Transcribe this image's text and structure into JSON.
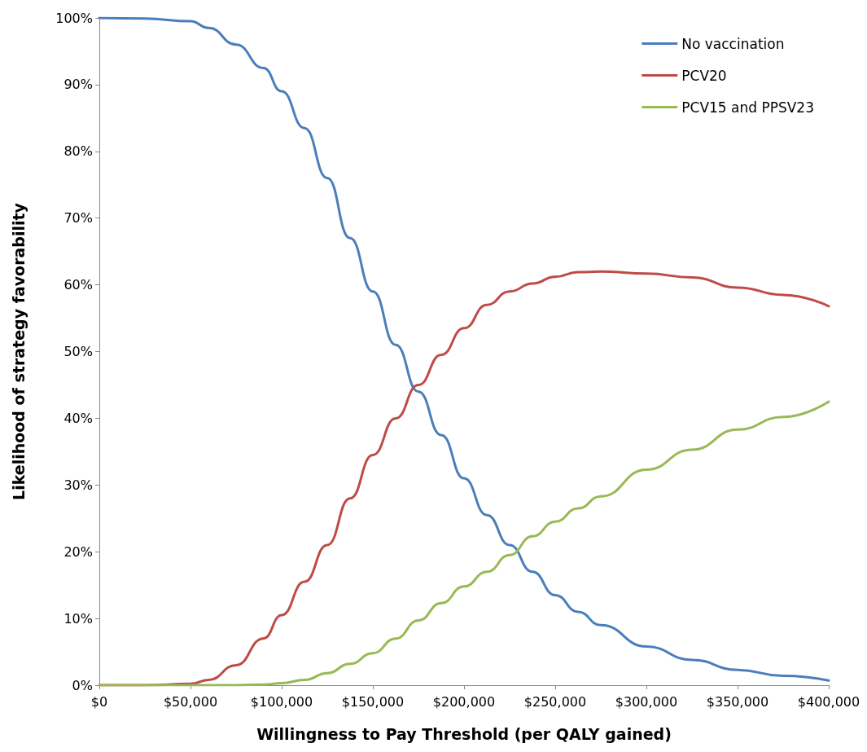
{
  "chart_data": {
    "type": "line",
    "xlabel": "Willingness to Pay Threshold (per QALY gained)",
    "ylabel": "Likelihood of strategy favorability",
    "xlim": [
      0,
      400000
    ],
    "ylim": [
      0,
      100
    ],
    "xticks": [
      {
        "value": 0,
        "label": "$0"
      },
      {
        "value": 50000,
        "label": "$50,000"
      },
      {
        "value": 100000,
        "label": "$100,000"
      },
      {
        "value": 150000,
        "label": "$150,000"
      },
      {
        "value": 200000,
        "label": "$200,000"
      },
      {
        "value": 250000,
        "label": "$250,000"
      },
      {
        "value": 300000,
        "label": "$300,000"
      },
      {
        "value": 350000,
        "label": "$350,000"
      },
      {
        "value": 400000,
        "label": "$400,000"
      }
    ],
    "yticks": [
      {
        "value": 0,
        "label": "0%"
      },
      {
        "value": 10,
        "label": "10%"
      },
      {
        "value": 20,
        "label": "20%"
      },
      {
        "value": 30,
        "label": "30%"
      },
      {
        "value": 40,
        "label": "40%"
      },
      {
        "value": 50,
        "label": "50%"
      },
      {
        "value": 60,
        "label": "60%"
      },
      {
        "value": 70,
        "label": "70%"
      },
      {
        "value": 80,
        "label": "80%"
      },
      {
        "value": 90,
        "label": "90%"
      },
      {
        "value": 100,
        "label": "100%"
      }
    ],
    "grid": false,
    "legend": "top right",
    "marker": "none",
    "line_style": "solid",
    "x": [
      0,
      25000,
      50000,
      60000,
      75000,
      90000,
      100000,
      112500,
      125000,
      137500,
      150000,
      162500,
      175000,
      187500,
      200000,
      212500,
      225000,
      237500,
      250000,
      262500,
      275000,
      300000,
      325000,
      350000,
      375000,
      400000
    ],
    "series": [
      {
        "name": "No vaccination",
        "color": "#4a7ebb",
        "values": [
          100,
          99.9,
          99.5,
          98.5,
          96,
          92.5,
          89,
          83.5,
          76,
          67,
          59,
          51,
          44,
          37.5,
          31,
          25.5,
          21,
          17,
          13.5,
          11,
          9,
          5.8,
          3.8,
          2.3,
          1.4,
          0.7
        ]
      },
      {
        "name": "PCV20",
        "color": "#be4b48",
        "values": [
          0,
          0,
          0.2,
          0.8,
          3,
          7,
          10.5,
          15.5,
          21,
          28,
          34.5,
          40,
          45,
          49.5,
          53.5,
          57,
          59,
          60.2,
          61.2,
          61.9,
          62,
          61.7,
          61.1,
          59.6,
          58.5,
          56.8
        ]
      },
      {
        "name": "PCV15 and PPSV23",
        "color": "#98b954",
        "values": [
          0,
          0,
          0,
          0,
          0,
          0.1,
          0.3,
          0.8,
          1.8,
          3.2,
          4.8,
          7,
          9.7,
          12.3,
          14.8,
          17,
          19.5,
          22.3,
          24.5,
          26.5,
          28.3,
          32.3,
          35.3,
          38.3,
          40.2,
          42.5
        ]
      }
    ]
  }
}
